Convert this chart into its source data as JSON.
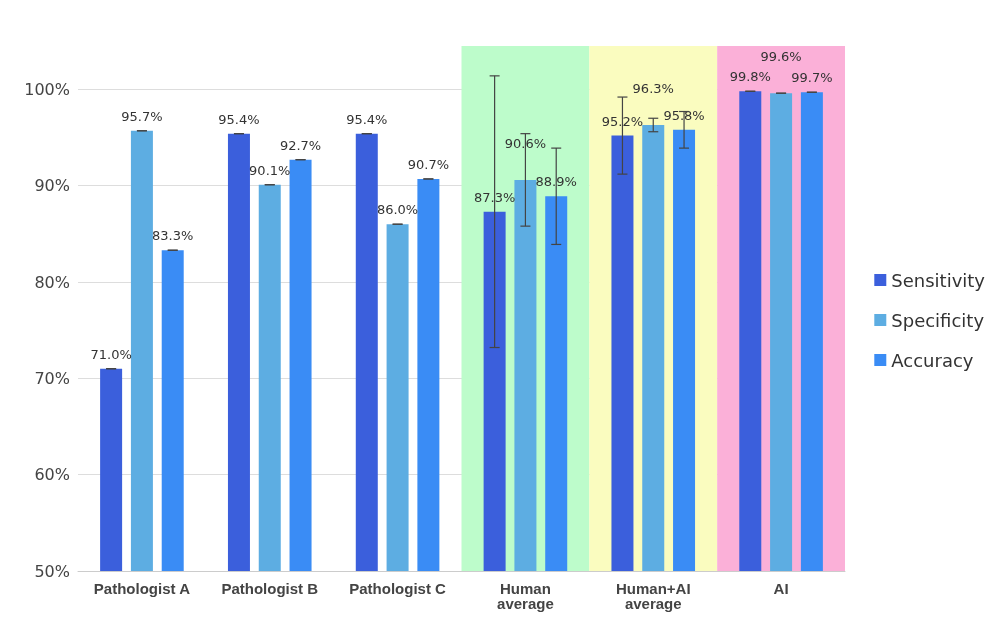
{
  "chart_data": {
    "type": "bar",
    "categories": [
      "Pathologist A",
      "Pathologist B",
      "Pathologist C",
      "Human\naverage",
      "Human+AI\naverage",
      "AI"
    ],
    "series": [
      {
        "name": "Sensitivity",
        "color": "#3b5fdc",
        "values": [
          71.0,
          95.4,
          95.4,
          87.3,
          95.2,
          99.8
        ],
        "value_labels": [
          "71.0%",
          "95.4%",
          "95.4%",
          "87.3%",
          "95.2%",
          "99.8%"
        ],
        "errors": [
          0,
          0,
          0,
          14.1,
          4.0,
          0
        ]
      },
      {
        "name": "Specificity",
        "color": "#5dade2",
        "values": [
          95.7,
          90.1,
          86.0,
          90.6,
          96.3,
          99.6
        ],
        "value_labels": [
          "95.7%",
          "90.1%",
          "86.0%",
          "90.6%",
          "96.3%",
          "99.6%"
        ],
        "errors": [
          0,
          0,
          0,
          4.8,
          0.7,
          0
        ]
      },
      {
        "name": "Accuracy",
        "color": "#3a8cf5",
        "values": [
          83.3,
          92.7,
          90.7,
          88.9,
          95.8,
          99.7
        ],
        "value_labels": [
          "83.3%",
          "92.7%",
          "90.7%",
          "88.9%",
          "95.8%",
          "99.7%"
        ],
        "errors": [
          0,
          0,
          0,
          5.0,
          1.9,
          0
        ]
      }
    ],
    "ylim": [
      50,
      104.5
    ],
    "yticks": [
      {
        "value": 50,
        "label": "50%"
      },
      {
        "value": 60,
        "label": "60%"
      },
      {
        "value": 70,
        "label": "70%"
      },
      {
        "value": 80,
        "label": "80%"
      },
      {
        "value": 90,
        "label": "90%"
      },
      {
        "value": 100,
        "label": "100%"
      }
    ],
    "bands": [
      {
        "axis": "x",
        "from": "Human\naverage",
        "to": "Human\naverage",
        "color": "#bdfccb"
      },
      {
        "axis": "x",
        "from": "Human+AI\naverage",
        "to": "Human+AI\naverage",
        "color": "#fafcbf"
      },
      {
        "axis": "x",
        "from": "AI",
        "to": "AI",
        "color": "#fbb0d8"
      }
    ],
    "grid": "y",
    "legend": "right"
  }
}
